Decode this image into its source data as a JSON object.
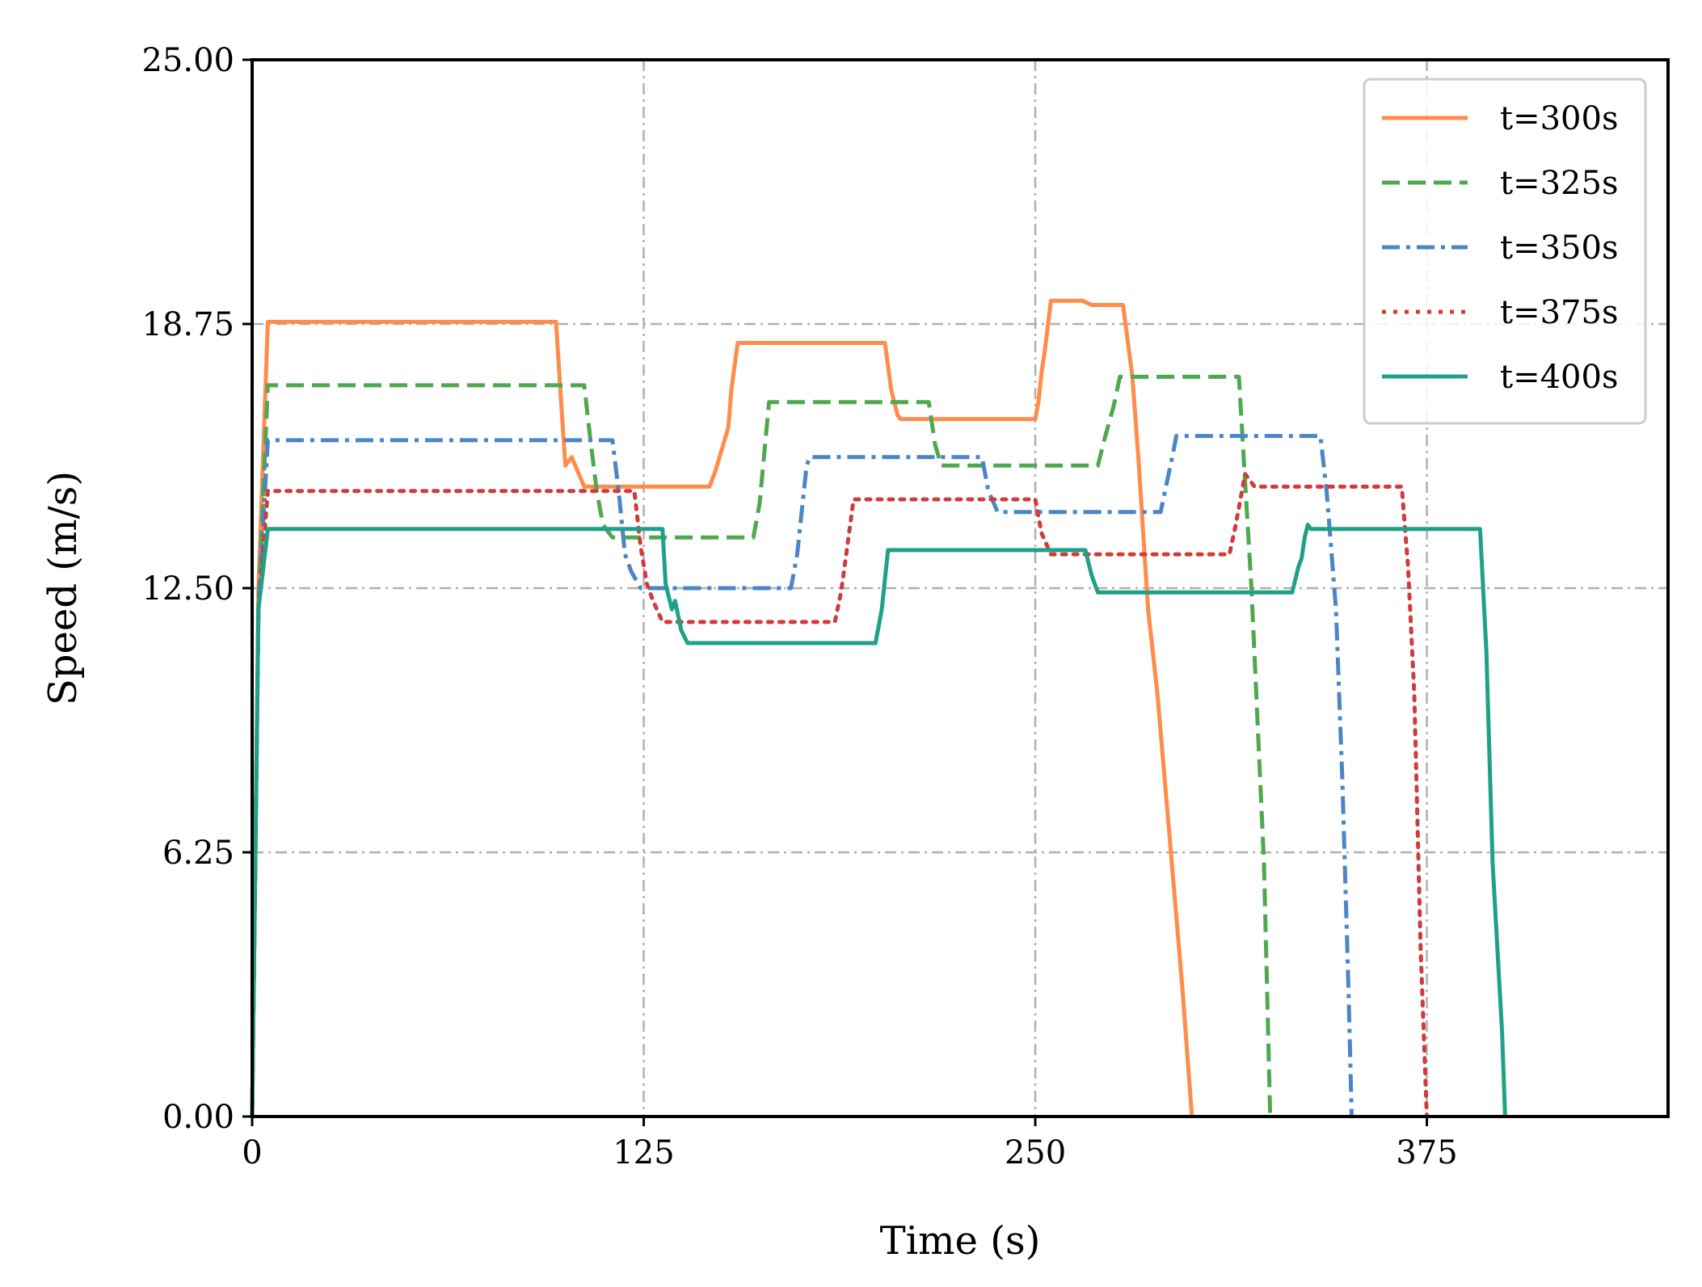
{
  "chart_data": {
    "type": "line",
    "title": "",
    "xlabel": "Time (s)",
    "ylabel": "Speed (m/s)",
    "xlim": [
      0,
      452
    ],
    "ylim": [
      0,
      25
    ],
    "xticks": [
      0,
      125,
      250,
      375
    ],
    "xtick_labels": [
      "0",
      "125",
      "250",
      "375"
    ],
    "yticks": [
      0,
      6.25,
      12.5,
      18.75,
      25
    ],
    "ytick_labels": [
      "0.00",
      "6.25",
      "12.50",
      "18.75",
      "25.00"
    ],
    "grid": true,
    "legend_position": "top-right",
    "series": [
      {
        "name": "t=300s",
        "color": "#FF8C4A",
        "style": "solid",
        "x": [
          0,
          2,
          5,
          97,
          99,
          100,
          102,
          106,
          146,
          148,
          150,
          152,
          153,
          155,
          202,
          204,
          206,
          207,
          250,
          251,
          252,
          253,
          255,
          265,
          268,
          278,
          281,
          283,
          286,
          289,
          297,
          300
        ],
        "y": [
          0,
          12.5,
          18.8,
          18.8,
          16.5,
          15.4,
          15.6,
          14.9,
          14.9,
          15.3,
          15.8,
          16.3,
          17.2,
          18.3,
          18.3,
          17.2,
          16.6,
          16.5,
          16.5,
          16.9,
          17.6,
          18.1,
          19.3,
          19.3,
          19.2,
          19.2,
          17.5,
          15.5,
          12.0,
          10.0,
          3.0,
          0
        ]
      },
      {
        "name": "t=325s",
        "color": "#4EA84E",
        "style": "dashed",
        "x": [
          0,
          2,
          5,
          106,
          108,
          110,
          112,
          115,
          160,
          162,
          165,
          216,
          218,
          220,
          270,
          272,
          275,
          277,
          289,
          290,
          315,
          317,
          319,
          323,
          325
        ],
        "y": [
          0,
          12.0,
          17.3,
          17.3,
          16.0,
          14.8,
          14.0,
          13.7,
          13.7,
          14.5,
          16.9,
          16.9,
          15.9,
          15.4,
          15.4,
          16.0,
          16.8,
          17.5,
          17.5,
          17.5,
          17.5,
          15.0,
          12.5,
          6.0,
          0
        ]
      },
      {
        "name": "t=350s",
        "color": "#4A86C5",
        "style": "dashdot",
        "x": [
          0,
          2,
          5,
          115,
          117,
          119,
          121,
          124,
          172,
          174,
          177,
          178,
          233,
          235,
          238,
          290,
          292,
          294,
          295,
          341,
          343,
          346,
          348,
          350,
          351
        ],
        "y": [
          0,
          12.0,
          16.0,
          16.0,
          14.8,
          13.3,
          12.9,
          12.5,
          12.5,
          13.3,
          15.4,
          15.6,
          15.6,
          14.8,
          14.3,
          14.3,
          15.0,
          15.7,
          16.1,
          16.1,
          14.8,
          12.0,
          8.0,
          3.0,
          0
        ]
      },
      {
        "name": "t=375s",
        "color": "#D03B3B",
        "style": "dotted",
        "x": [
          0,
          2,
          5,
          122,
          124,
          126,
          128,
          131,
          186,
          188,
          190,
          192,
          250,
          252,
          255,
          312,
          314,
          316,
          317,
          320,
          367,
          369,
          371,
          373,
          375
        ],
        "y": [
          0,
          12.0,
          14.8,
          14.8,
          13.5,
          12.6,
          12.2,
          11.7,
          11.7,
          12.4,
          13.5,
          14.6,
          14.6,
          13.8,
          13.3,
          13.3,
          14.0,
          14.8,
          15.2,
          14.9,
          14.9,
          13.0,
          10.0,
          4.0,
          0
        ]
      },
      {
        "name": "t=400s",
        "color": "#1FA187",
        "style": "solid",
        "x": [
          0,
          2,
          5,
          131,
          132,
          134,
          135,
          137,
          139,
          199,
          201,
          203,
          204,
          266,
          268,
          270,
          332,
          334,
          335,
          336,
          337,
          338,
          392,
          394,
          396,
          399,
          400
        ],
        "y": [
          0,
          12.0,
          13.9,
          13.9,
          12.6,
          12.0,
          12.2,
          11.5,
          11.2,
          11.2,
          12.0,
          13.4,
          13.4,
          13.4,
          12.8,
          12.4,
          12.4,
          13.0,
          13.2,
          13.7,
          14.0,
          13.9,
          13.9,
          11.0,
          6.0,
          2.0,
          0
        ]
      }
    ]
  }
}
